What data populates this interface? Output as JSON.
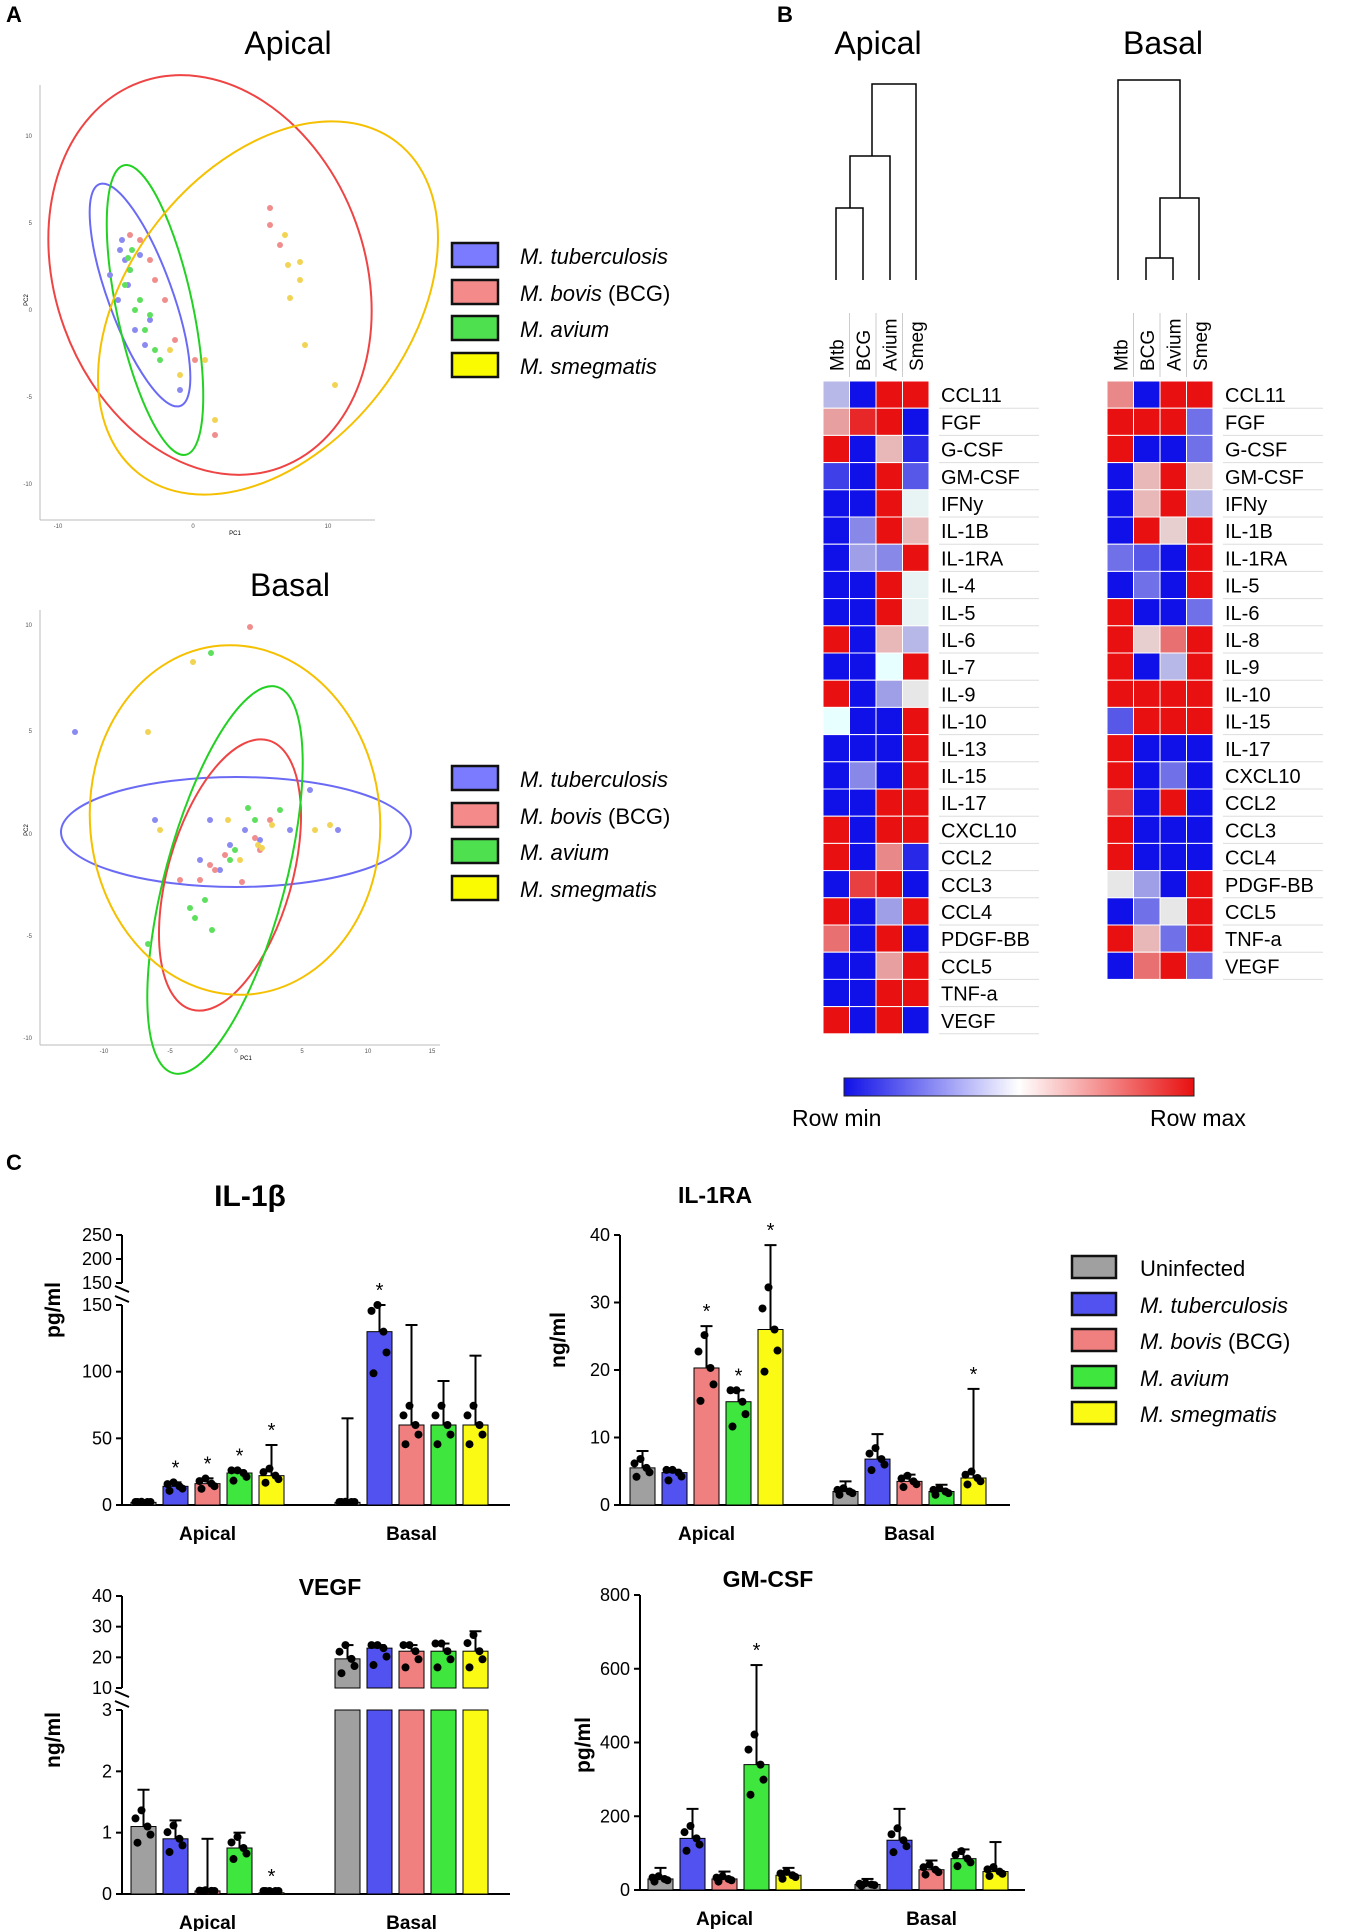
{
  "panel_labels": {
    "a": "A",
    "b": "B",
    "c": "C"
  },
  "pca": {
    "apical_title": "Apical",
    "basal_title": "Basal",
    "xlabel": "PC1",
    "ylabel": "PC2"
  },
  "species": [
    {
      "name": "M. tuberculosis",
      "suffix": "",
      "color": "#7b7bff"
    },
    {
      "name": "M. bovis",
      "suffix": " (BCG)",
      "color": "#f58a8a"
    },
    {
      "name": "M. avium",
      "suffix": "",
      "color": "#4ee04e"
    },
    {
      "name": "M. smegmatis",
      "suffix": "",
      "color": "#fafa00"
    }
  ],
  "pca_colors": {
    "tb": "#8a8af0",
    "bcg": "#f08d8d",
    "avium": "#5ee05e",
    "smeg": "#f2d455"
  },
  "heatmap": {
    "columns": [
      "Mtb",
      "BCG",
      "Avium",
      "Smeg"
    ],
    "apical_title": "Apical",
    "basal_title": "Basal",
    "apical_rows": [
      "CCL11",
      "FGF",
      "G-CSF",
      "GM-CSF",
      "IFNy",
      "IL-1B",
      "IL-1RA",
      "IL-4",
      "IL-5",
      "IL-6",
      "IL-7",
      "IL-9",
      "IL-10",
      "IL-13",
      "IL-15",
      "IL-17",
      "CXCL10",
      "CCL2",
      "CCL3",
      "CCL4",
      "PDGF-BB",
      "CCL5",
      "TNF-a",
      "VEGF"
    ],
    "apical_values": [
      [
        -0.3,
        -1,
        1,
        1
      ],
      [
        0.4,
        0.9,
        1,
        -1
      ],
      [
        1,
        -1,
        0.3,
        -0.9
      ],
      [
        -0.8,
        -1,
        1,
        -0.7
      ],
      [
        -1,
        -1,
        1,
        0.05
      ],
      [
        -1,
        -0.5,
        1,
        0.3
      ],
      [
        -1,
        -0.4,
        -0.5,
        1
      ],
      [
        -1,
        -1,
        1,
        0.05
      ],
      [
        -1,
        -1,
        1,
        0.05
      ],
      [
        1,
        -1,
        0.3,
        -0.3
      ],
      [
        -1,
        -1,
        0,
        1
      ],
      [
        1,
        -1,
        -0.4,
        -0.1
      ],
      [
        0,
        -1,
        -1,
        1
      ],
      [
        -1,
        -1,
        -1,
        1
      ],
      [
        -1,
        -0.5,
        -1,
        1
      ],
      [
        -1,
        -1,
        1,
        1
      ],
      [
        1,
        -1,
        1,
        1
      ],
      [
        1,
        -1,
        0.5,
        -0.9
      ],
      [
        -1,
        0.8,
        1,
        -1
      ],
      [
        1,
        -1,
        -0.4,
        1
      ],
      [
        0.6,
        -1,
        1,
        -1
      ],
      [
        -1,
        -1,
        0.4,
        1
      ],
      [
        -1,
        -1,
        1,
        1
      ],
      [
        1,
        -1,
        1,
        -1
      ]
    ],
    "basal_rows": [
      "CCL11",
      "FGF",
      "G-CSF",
      "GM-CSF",
      "IFNy",
      "IL-1B",
      "IL-1RA",
      "IL-5",
      "IL-6",
      "IL-8",
      "IL-9",
      "IL-10",
      "IL-15",
      "IL-17",
      "CXCL10",
      "CCL2",
      "CCL3",
      "CCL4",
      "PDGF-BB",
      "CCL5",
      "TNF-a",
      "VEGF"
    ],
    "basal_values": [
      [
        0.5,
        -1,
        1,
        1
      ],
      [
        1,
        1,
        1,
        -0.6
      ],
      [
        1,
        -1,
        -1,
        -0.6
      ],
      [
        -1,
        0.3,
        1,
        0.2
      ],
      [
        -1,
        0.3,
        1,
        -0.3
      ],
      [
        -1,
        1,
        0.2,
        1
      ],
      [
        -0.6,
        -0.7,
        -1,
        1
      ],
      [
        -1,
        -0.6,
        -1,
        1
      ],
      [
        1,
        -1,
        -1,
        -0.6
      ],
      [
        1,
        0.2,
        0.6,
        1
      ],
      [
        1,
        -1,
        -0.3,
        1
      ],
      [
        1,
        1,
        1,
        1
      ],
      [
        -0.7,
        1,
        1,
        1
      ],
      [
        1,
        -1,
        -1,
        -1
      ],
      [
        1,
        -1,
        -0.6,
        -1
      ],
      [
        0.8,
        -1,
        1,
        -1
      ],
      [
        1,
        -1,
        -1,
        -1
      ],
      [
        1,
        -1,
        -1,
        -1
      ],
      [
        0.1,
        -0.4,
        -1,
        1
      ],
      [
        -1,
        -0.6,
        0.1,
        1
      ],
      [
        1,
        0.3,
        -0.6,
        1
      ],
      [
        -1,
        0.6,
        1,
        -0.6
      ]
    ],
    "scale_min_label": "Row min",
    "scale_max_label": "Row max"
  },
  "bar_legend": [
    {
      "name": "Uninfected",
      "suffix": "",
      "italic": false,
      "color": "#a0a0a0"
    },
    {
      "name": "M. tuberculosis",
      "suffix": "",
      "italic": true,
      "color": "#5252f0"
    },
    {
      "name": "M. bovis",
      "suffix": " (BCG)",
      "italic": true,
      "color": "#f08080"
    },
    {
      "name": "M. avium",
      "suffix": "",
      "italic": true,
      "color": "#3ee63e"
    },
    {
      "name": "M. smegmatis",
      "suffix": "",
      "italic": true,
      "color": "#fafa14"
    }
  ],
  "chart_data": [
    {
      "type": "bar",
      "title": "IL-1β",
      "ylabel": "pg/ml",
      "categories": [
        "Apical",
        "Basal"
      ],
      "series_names": [
        "Uninfected",
        "M. tuberculosis",
        "M. bovis (BCG)",
        "M. avium",
        "M. smegmatis"
      ],
      "ylim_lower": [
        0,
        150
      ],
      "lower_ticks": [
        0,
        50,
        100,
        150
      ],
      "ylim_upper": [
        150,
        250
      ],
      "upper_ticks": [
        150,
        200,
        250
      ],
      "values": [
        [
          2,
          14,
          16,
          24,
          22
        ],
        [
          2,
          130,
          60,
          60,
          60
        ]
      ],
      "error_high": [
        [
          3,
          17,
          20,
          26,
          45
        ],
        [
          65,
          150,
          135,
          93,
          112
        ]
      ],
      "significance": [
        [
          "",
          "*",
          "*",
          "*",
          "*"
        ],
        [
          "",
          "*",
          "",
          "",
          ""
        ]
      ]
    },
    {
      "type": "bar",
      "title": "IL-1RA",
      "ylabel": "ng/ml",
      "categories": [
        "Apical",
        "Basal"
      ],
      "series_names": [
        "Uninfected",
        "M. tuberculosis",
        "M. bovis (BCG)",
        "M. avium",
        "M. smegmatis"
      ],
      "ylim": [
        0,
        40
      ],
      "ticks": [
        0,
        10,
        20,
        30,
        40
      ],
      "values": [
        [
          5.5,
          4.8,
          20.3,
          15.3,
          26
        ],
        [
          2,
          6.8,
          3.5,
          2,
          4
        ]
      ],
      "error_high": [
        [
          8,
          5.2,
          26.5,
          17,
          38.5
        ],
        [
          3.5,
          10.5,
          4.5,
          3,
          17.2
        ]
      ],
      "significance": [
        [
          "",
          "",
          "*",
          "*",
          "*"
        ],
        [
          "",
          "",
          "",
          "",
          "*"
        ]
      ]
    },
    {
      "type": "bar",
      "title": "VEGF",
      "ylabel": "ng/ml",
      "categories": [
        "Apical",
        "Basal"
      ],
      "series_names": [
        "Uninfected",
        "M. tuberculosis",
        "M. bovis (BCG)",
        "M. avium",
        "M. smegmatis"
      ],
      "ylim_lower": [
        0,
        3
      ],
      "lower_ticks": [
        0,
        1,
        2,
        3
      ],
      "ylim_upper": [
        10,
        40
      ],
      "upper_ticks": [
        10,
        20,
        30,
        40
      ],
      "values": [
        [
          1.1,
          0.9,
          0.05,
          0.75,
          0.02
        ],
        [
          19.5,
          23,
          22,
          22,
          22
        ]
      ],
      "error_high": [
        [
          1.7,
          1.2,
          0.9,
          1.0,
          0.05
        ],
        [
          24,
          24,
          24,
          24.5,
          28.5
        ]
      ],
      "significance": [
        [
          "",
          "",
          "",
          "",
          "*"
        ],
        [
          "",
          "",
          "",
          "",
          ""
        ]
      ]
    },
    {
      "type": "bar",
      "title": "GM-CSF",
      "ylabel": "pg/ml",
      "categories": [
        "Apical",
        "Basal"
      ],
      "series_names": [
        "Uninfected",
        "M. tuberculosis",
        "M. bovis (BCG)",
        "M. avium",
        "M. smegmatis"
      ],
      "ylim": [
        0,
        800
      ],
      "ticks": [
        0,
        200,
        400,
        600,
        800
      ],
      "values": [
        [
          30,
          140,
          30,
          340,
          40
        ],
        [
          15,
          135,
          55,
          85,
          50
        ]
      ],
      "error_high": [
        [
          60,
          220,
          50,
          610,
          60
        ],
        [
          30,
          220,
          80,
          110,
          130
        ]
      ],
      "significance": [
        [
          "",
          "",
          "",
          "*",
          ""
        ],
        [
          "",
          "",
          "",
          "",
          ""
        ]
      ]
    }
  ]
}
